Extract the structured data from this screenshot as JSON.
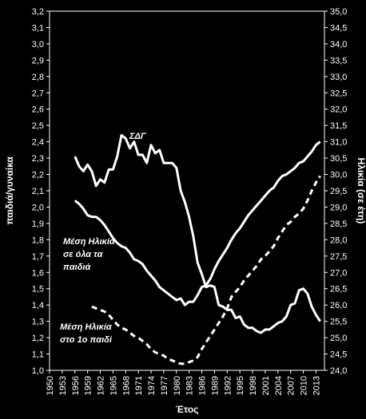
{
  "chart_data": {
    "type": "line",
    "xlabel": "Έτος",
    "ylabel_left": "παιδιά/γυναίκα",
    "ylabel_right": "Ηλικία (σε έτη)",
    "x_ticks": [
      "1950",
      "1953",
      "1956",
      "1959",
      "1962",
      "1965",
      "1968",
      "1971",
      "1974",
      "1977",
      "1980",
      "1983",
      "1986",
      "1989",
      "1992",
      "1995",
      "1998",
      "2001",
      "2004",
      "2007",
      "2010",
      "2013"
    ],
    "y_left_ticks": [
      "1,0",
      "1,1",
      "1,2",
      "1,3",
      "1,4",
      "1,5",
      "1,6",
      "1,7",
      "1,8",
      "1,9",
      "2,0",
      "2,1",
      "2,2",
      "2,3",
      "2,4",
      "2,5",
      "2,6",
      "2,7",
      "2,8",
      "2,9",
      "3,0",
      "3,1",
      "3,2"
    ],
    "y_right_ticks": [
      "24,0",
      "24,5",
      "25,0",
      "25,5",
      "26,0",
      "26,5",
      "27,0",
      "27,5",
      "28,0",
      "28,5",
      "29,0",
      "29,5",
      "30,0",
      "30,5",
      "31,0",
      "31,5",
      "32,0",
      "32,5",
      "33,0",
      "33,5",
      "34,0",
      "34,5",
      "35,0"
    ],
    "ylim_left": [
      1.0,
      3.2
    ],
    "ylim_right": [
      24.0,
      35.0
    ],
    "xlim": [
      1950,
      2015
    ],
    "grid": false,
    "series": [
      {
        "name": "ΣΔΓ",
        "axis": "left",
        "style": "solid",
        "x": [
          1956,
          1957,
          1958,
          1959,
          1960,
          1961,
          1962,
          1963,
          1964,
          1965,
          1966,
          1967,
          1968,
          1969,
          1970,
          1971,
          1972,
          1973,
          1974,
          1975,
          1976,
          1977,
          1978,
          1979,
          1980,
          1981,
          1982,
          1983,
          1984,
          1985,
          1986,
          1987,
          1988,
          1989,
          1990,
          1991,
          1992,
          1993,
          1994,
          1995,
          1996,
          1997,
          1998,
          1999,
          2000,
          2001,
          2002,
          2003,
          2004,
          2005,
          2006,
          2007,
          2008,
          2009,
          2010,
          2011,
          2012,
          2013,
          2014
        ],
        "values": [
          2.31,
          2.25,
          2.22,
          2.26,
          2.22,
          2.13,
          2.17,
          2.15,
          2.23,
          2.23,
          2.31,
          2.44,
          2.42,
          2.36,
          2.4,
          2.32,
          2.32,
          2.27,
          2.38,
          2.33,
          2.35,
          2.27,
          2.27,
          2.27,
          2.24,
          2.1,
          2.03,
          1.94,
          1.82,
          1.66,
          1.59,
          1.51,
          1.52,
          1.51,
          1.4,
          1.39,
          1.37,
          1.37,
          1.32,
          1.33,
          1.28,
          1.26,
          1.26,
          1.24,
          1.23,
          1.25,
          1.25,
          1.27,
          1.29,
          1.3,
          1.33,
          1.4,
          1.41,
          1.49,
          1.5,
          1.47,
          1.39,
          1.34,
          1.3
        ]
      },
      {
        "name": "Μέση Ηλικία σε όλα τα παιδιά",
        "axis": "right",
        "style": "solid",
        "x": [
          1956,
          1957,
          1958,
          1959,
          1960,
          1961,
          1962,
          1963,
          1964,
          1965,
          1966,
          1967,
          1968,
          1969,
          1970,
          1971,
          1972,
          1973,
          1974,
          1975,
          1976,
          1977,
          1978,
          1979,
          1980,
          1981,
          1982,
          1983,
          1984,
          1985,
          1986,
          1987,
          1988,
          1989,
          1990,
          1991,
          1992,
          1993,
          1994,
          1995,
          1996,
          1997,
          1998,
          1999,
          2000,
          2001,
          2002,
          2003,
          2004,
          2005,
          2006,
          2007,
          2008,
          2009,
          2010,
          2011,
          2012,
          2013,
          2014
        ],
        "values": [
          29.2,
          29.1,
          28.95,
          28.75,
          28.7,
          28.7,
          28.6,
          28.45,
          28.25,
          28.05,
          27.9,
          27.8,
          27.75,
          27.6,
          27.4,
          27.35,
          27.25,
          27.05,
          26.9,
          26.75,
          26.55,
          26.45,
          26.35,
          26.25,
          26.15,
          26.2,
          26.0,
          26.1,
          26.1,
          26.3,
          26.55,
          26.6,
          26.8,
          27.1,
          27.35,
          27.55,
          27.75,
          28.0,
          28.2,
          28.35,
          28.55,
          28.75,
          28.9,
          29.05,
          29.2,
          29.35,
          29.5,
          29.6,
          29.8,
          29.95,
          30.0,
          30.1,
          30.2,
          30.35,
          30.4,
          30.55,
          30.7,
          30.9,
          31.0
        ]
      },
      {
        "name": "Μέση Ηλικία στο 1ο παιδί",
        "axis": "right",
        "style": "dashed",
        "x": [
          1960,
          1961,
          1962,
          1963,
          1964,
          1965,
          1966,
          1967,
          1968,
          1969,
          1970,
          1971,
          1972,
          1973,
          1974,
          1975,
          1976,
          1977,
          1978,
          1979,
          1980,
          1981,
          1982,
          1983,
          1984,
          1985,
          1986,
          1987,
          1988,
          1989,
          1990,
          1991,
          1992,
          1993,
          1994,
          1995,
          1996,
          1997,
          1998,
          1999,
          2000,
          2001,
          2002,
          2003,
          2004,
          2005,
          2006,
          2007,
          2008,
          2009,
          2010,
          2011,
          2012,
          2013,
          2014
        ],
        "values": [
          25.95,
          25.9,
          25.85,
          25.8,
          25.7,
          25.55,
          25.4,
          25.3,
          25.25,
          25.15,
          25.05,
          25.0,
          24.9,
          24.8,
          24.65,
          24.55,
          24.5,
          24.45,
          24.35,
          24.3,
          24.25,
          24.2,
          24.2,
          24.25,
          24.3,
          24.4,
          24.65,
          24.85,
          25.05,
          25.25,
          25.45,
          25.65,
          25.9,
          26.25,
          26.4,
          26.55,
          26.75,
          26.9,
          27.05,
          27.2,
          27.4,
          27.5,
          27.65,
          27.8,
          28.05,
          28.25,
          28.45,
          28.55,
          28.7,
          28.8,
          28.95,
          29.2,
          29.5,
          29.75,
          29.95
        ]
      }
    ],
    "annotations": [
      {
        "id": "tfr",
        "lines": [
          "ΣΔΓ"
        ]
      },
      {
        "id": "mean-all",
        "lines": [
          "Μέση Ηλικία",
          "σε όλα τα",
          "παιδιά"
        ]
      },
      {
        "id": "mean-first",
        "lines": [
          "Μέση Ηλικία",
          "στο 1ο παιδί"
        ]
      }
    ]
  }
}
